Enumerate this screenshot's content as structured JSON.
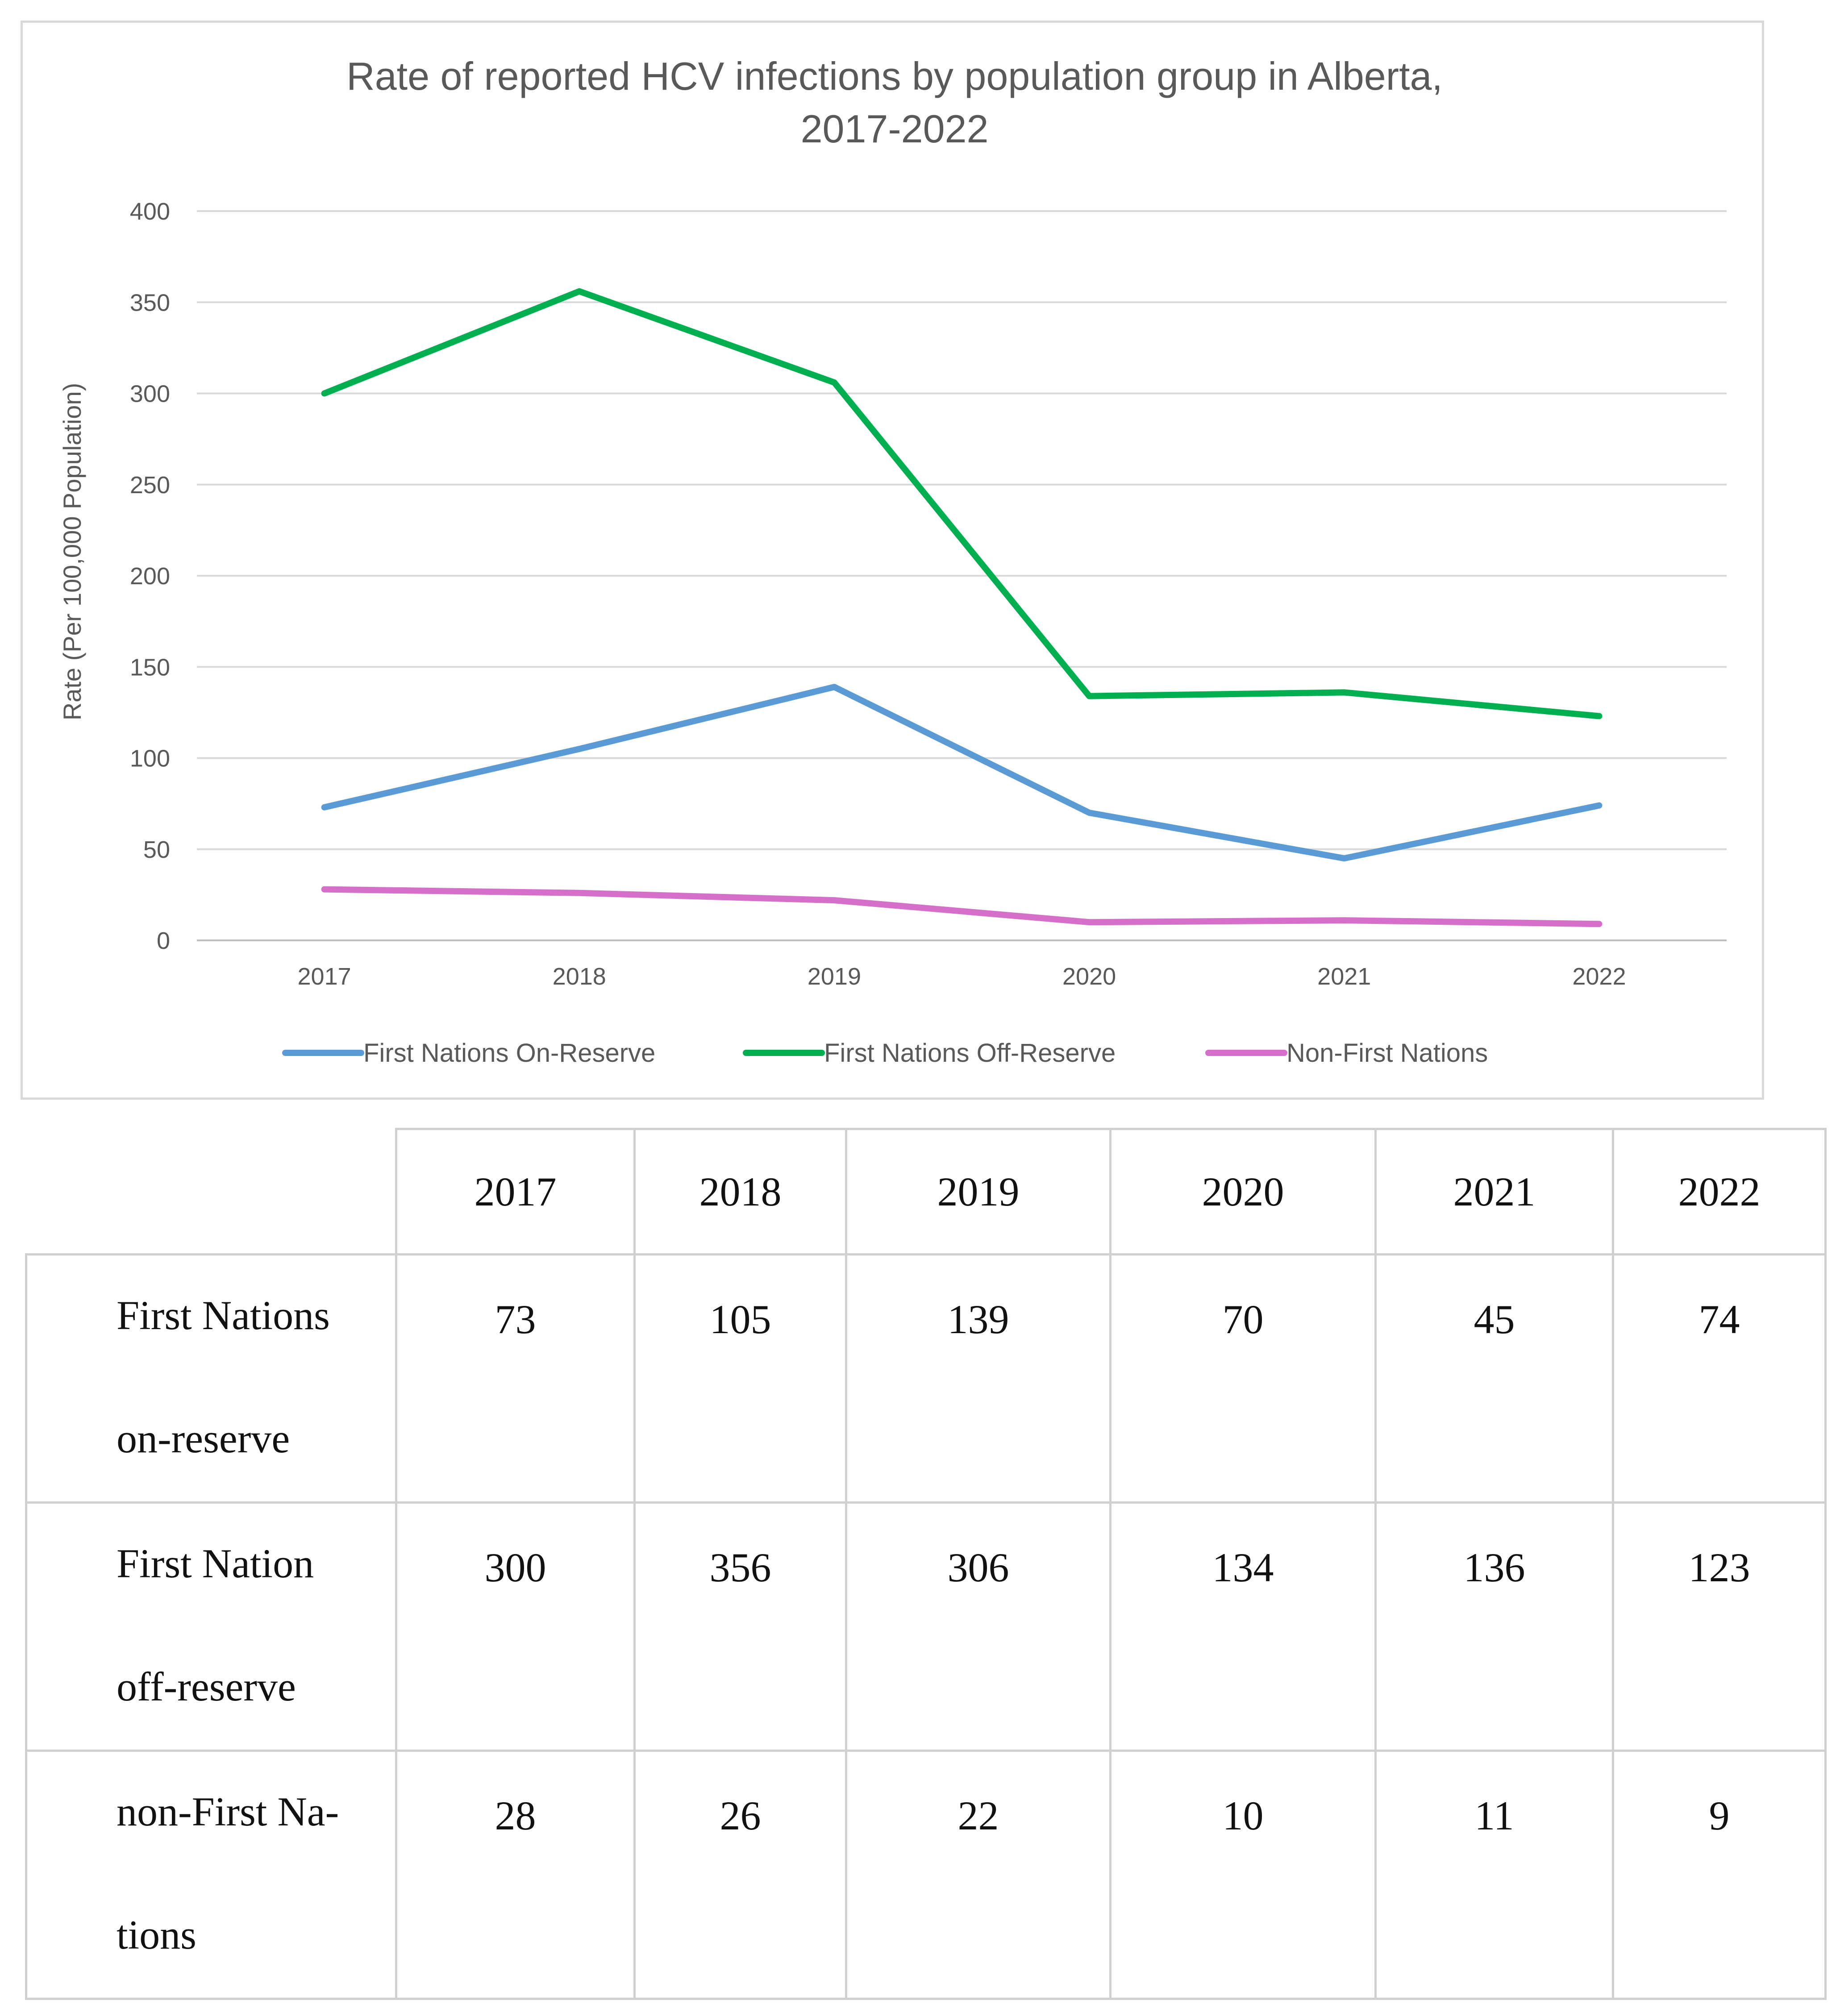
{
  "chart_data": {
    "type": "line",
    "title": "Rate of reported HCV infections by population group in Alberta, 2017-2022",
    "title_lines": [
      "Rate of reported HCV infections by population group in Alberta,",
      "2017-2022"
    ],
    "categories": [
      "2017",
      "2018",
      "2019",
      "2020",
      "2021",
      "2022"
    ],
    "ylabel": "Rate (Per 100,000 Population)",
    "xlabel": "",
    "ylim": [
      0,
      400
    ],
    "yticks": [
      0,
      50,
      100,
      150,
      200,
      250,
      300,
      350,
      400
    ],
    "grid": true,
    "legend_position": "bottom",
    "series": [
      {
        "name": "First Nations On-Reserve",
        "color": "#5b9bd5",
        "values": [
          73,
          105,
          139,
          70,
          45,
          74
        ]
      },
      {
        "name": "First Nations Off-Reserve",
        "color": "#00b050",
        "values": [
          300,
          356,
          306,
          134,
          136,
          123
        ]
      },
      {
        "name": "Non-First Nations",
        "color": "#d56fc9",
        "values": [
          28,
          26,
          22,
          10,
          11,
          9
        ]
      }
    ]
  },
  "table": {
    "headers": [
      "",
      "2017",
      "2018",
      "2019",
      "2020",
      "2021",
      "2022"
    ],
    "rows": [
      {
        "label_lines": [
          "First Nations",
          "on-reserve"
        ],
        "values": [
          "73",
          "105",
          "139",
          "70",
          "45",
          "74"
        ]
      },
      {
        "label_lines": [
          "First Nation",
          "off-reserve"
        ],
        "values": [
          "300",
          "356",
          "306",
          "134",
          "136",
          "123"
        ]
      },
      {
        "label_lines": [
          "non-First Na-",
          "tions"
        ],
        "values": [
          "28",
          "26",
          "22",
          "10",
          "11",
          "9"
        ]
      }
    ]
  }
}
